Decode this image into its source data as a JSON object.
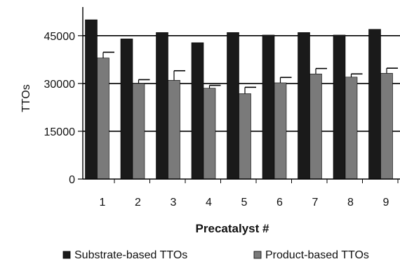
{
  "chart_data": {
    "type": "bar",
    "xlabel": "Precatalyst #",
    "ylabel": "TTOs",
    "categories": [
      "1",
      "2",
      "3",
      "4",
      "5",
      "6",
      "7",
      "8",
      "9"
    ],
    "yticks": [
      "0",
      "15000",
      "30000",
      "45000"
    ],
    "ylim": [
      0,
      54000
    ],
    "grid": "horizontal",
    "legend_position": "bottom",
    "series": [
      {
        "name": "Substrate-based TTOs",
        "color": "#1a1a1a",
        "values": [
          50000,
          44000,
          46000,
          42800,
          46000,
          45200,
          46000,
          45200,
          47000
        ],
        "errors": [
          0,
          0,
          0,
          0,
          0,
          0,
          0,
          0,
          0
        ]
      },
      {
        "name": "Product-based TTOs",
        "color": "#7a7a7a",
        "values": [
          38000,
          30000,
          31000,
          28500,
          26800,
          30200,
          33000,
          32000,
          33200
        ],
        "errors": [
          1800,
          1200,
          3000,
          900,
          2000,
          1700,
          1700,
          1000,
          1600
        ]
      }
    ]
  }
}
